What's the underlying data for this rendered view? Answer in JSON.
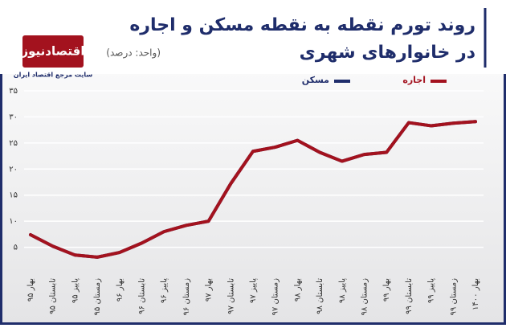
{
  "brand": {
    "name": "اقتصادنیوز",
    "tagline": "سایت مرجع اقتصاد ایران"
  },
  "chart_data": {
    "type": "line",
    "title": [
      "روند تورم نقطه به نقطه مسکن و اجاره",
      "در خانوارهای شهری"
    ],
    "subtitle": "(واحد: درصد)",
    "categories": [
      "بهار ۹۵",
      "تابستان ۹۵",
      "پاییز ۹۵",
      "زمستان ۹۵",
      "بهار ۹۶",
      "تابستان ۹۶",
      "پاییز ۹۶",
      "زمستان ۹۶",
      "بهار ۹۷",
      "تابستان ۹۷",
      "پاییز ۹۷",
      "زمستان ۹۷",
      "بهار ۹۸",
      "تابستان ۹۸",
      "پاییز ۹۸",
      "زمستان ۹۸",
      "بهار ۹۹",
      "تابستان ۹۹",
      "پاییز ۹۹",
      "زمستان ۹۹",
      "بهار ۱۴۰۰"
    ],
    "series": [
      {
        "name": "مسکن",
        "color": "#1f2d6b",
        "values": [
          7.4,
          5.2,
          3.5,
          3.1,
          4.0,
          5.8,
          8.0,
          9.2,
          10.0,
          17.2,
          23.4,
          24.2,
          25.5,
          23.2,
          21.5,
          22.8,
          23.2,
          28.9,
          28.3,
          28.8,
          29.1
        ]
      },
      {
        "name": "اجاره",
        "color": "#a3121e",
        "values": [
          7.4,
          5.2,
          3.5,
          3.1,
          4.0,
          5.8,
          8.0,
          9.2,
          10.0,
          17.2,
          23.4,
          24.2,
          25.5,
          23.2,
          21.5,
          22.8,
          23.2,
          28.9,
          28.3,
          28.8,
          29.1
        ]
      }
    ],
    "ylim": [
      0,
      35
    ],
    "yticks": [
      {
        "value": 5,
        "label": "۵"
      },
      {
        "value": 10,
        "label": "۱۰"
      },
      {
        "value": 15,
        "label": "۱۵"
      },
      {
        "value": 20,
        "label": "۲۰"
      },
      {
        "value": 25,
        "label": "۲۵"
      },
      {
        "value": 30,
        "label": "۳۰"
      },
      {
        "value": 35,
        "label": "۳۵"
      }
    ],
    "grid": true
  }
}
